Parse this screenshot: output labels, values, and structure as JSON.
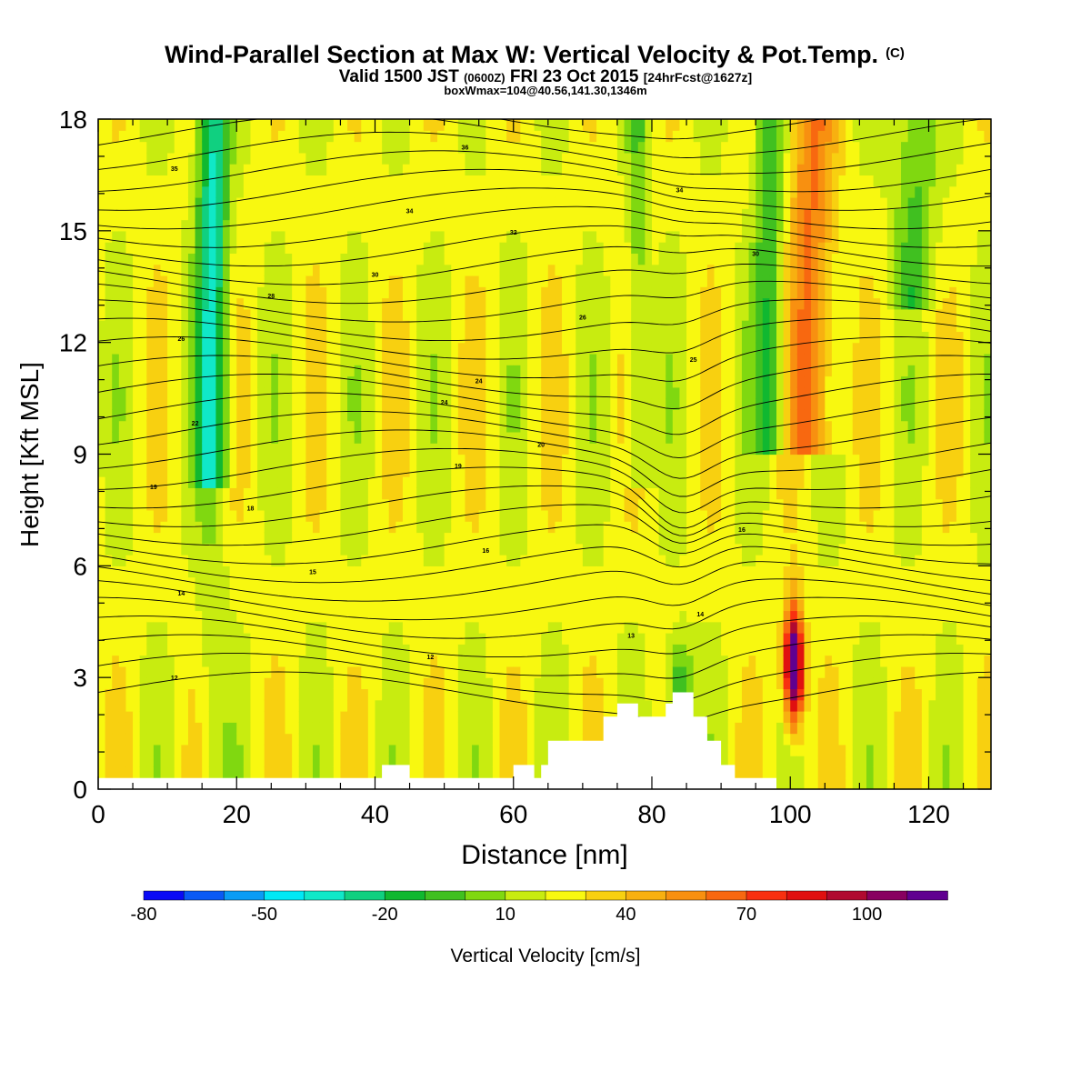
{
  "chart_data": {
    "type": "heatmap",
    "title": "Wind-Parallel Section at Max W: Vertical Velocity & Pot.Temp.",
    "title_suffix": "(C)",
    "subtitle_prefix": "Valid 1500 JST",
    "subtitle_utc": "(0600Z)",
    "subtitle_date": "FRI 23 Oct 2015",
    "subtitle_fcst": "[24hrFcst@1627z]",
    "subtitle2": "boxWmax=104@40.56,141.30,1346m",
    "xlabel": "Distance [nm]",
    "ylabel": "Height [Kft MSL]",
    "xlim": [
      0,
      129
    ],
    "ylim": [
      0,
      18
    ],
    "xticks": [
      0,
      20,
      40,
      60,
      80,
      100,
      120
    ],
    "yticks": [
      0,
      3,
      6,
      9,
      12,
      15,
      18
    ],
    "colorbar": {
      "label": "Vertical Velocity [cm/s]",
      "tick_labels": [
        "-80",
        "-50",
        "-20",
        "10",
        "40",
        "70",
        "100"
      ],
      "colors": [
        "#0a0af5",
        "#0a5af5",
        "#0a9cf5",
        "#00e8f5",
        "#10e8c8",
        "#10d080",
        "#10b830",
        "#40c020",
        "#80d810",
        "#c8ec10",
        "#f8f810",
        "#f8d010",
        "#f8b010",
        "#f89010",
        "#f86810",
        "#f83010",
        "#e01010",
        "#b00a30",
        "#880060",
        "#600090"
      ]
    },
    "theta_contour_labels": [
      "12",
      "13",
      "14",
      "15",
      "16",
      "18",
      "19",
      "20",
      "22",
      "24",
      "25",
      "26",
      "28",
      "30",
      "32",
      "34",
      "35",
      "36"
    ],
    "max_w": 104
  }
}
